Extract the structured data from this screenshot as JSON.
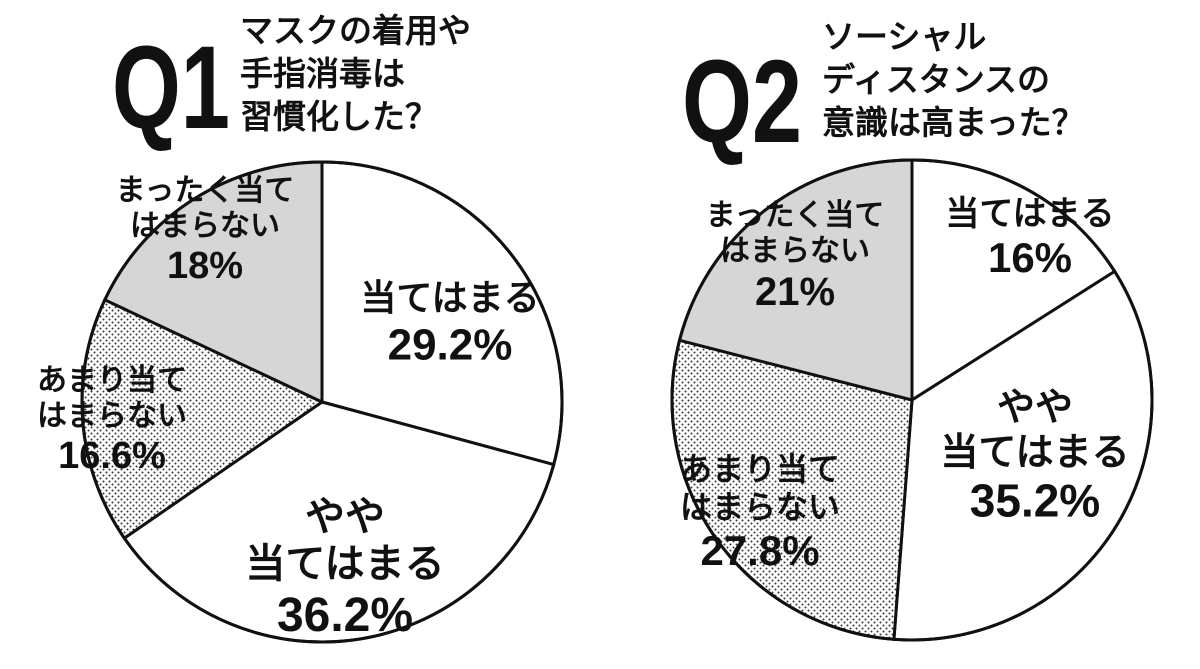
{
  "chart_data": [
    {
      "type": "pie",
      "question_number": "Q1",
      "title_lines": [
        "マスクの着用や",
        "手指消毒は",
        "習慣化した？"
      ],
      "slices": [
        {
          "label_lines": [
            "当てはまる"
          ],
          "value": 29.2,
          "value_text": "29.2%",
          "fill": "white"
        },
        {
          "label_lines": [
            "やや",
            "当てはまる"
          ],
          "value": 36.2,
          "value_text": "36.2%",
          "fill": "white"
        },
        {
          "label_lines": [
            "あまり当て",
            "はまらない"
          ],
          "value": 16.6,
          "value_text": "16.6%",
          "fill": "dots"
        },
        {
          "label_lines": [
            "まったく当て",
            "はまらない"
          ],
          "value": 18,
          "value_text": "18%",
          "fill": "gray"
        }
      ]
    },
    {
      "type": "pie",
      "question_number": "Q2",
      "title_lines": [
        "ソーシャル",
        "ディスタンスの",
        "意識は高まった？"
      ],
      "slices": [
        {
          "label_lines": [
            "当てはまる"
          ],
          "value": 16,
          "value_text": "16%",
          "fill": "white"
        },
        {
          "label_lines": [
            "やや",
            "当てはまる"
          ],
          "value": 35.2,
          "value_text": "35.2%",
          "fill": "white"
        },
        {
          "label_lines": [
            "あまり当て",
            "はまらない"
          ],
          "value": 27.8,
          "value_text": "27.8%",
          "fill": "dots"
        },
        {
          "label_lines": [
            "まったく当て",
            "はまらない"
          ],
          "value": 21,
          "value_text": "21%",
          "fill": "gray"
        }
      ]
    }
  ],
  "colors": {
    "ink": "#111111",
    "gray_fill": "#d6d6d6",
    "white_fill": "#ffffff",
    "dot": "#333333"
  }
}
